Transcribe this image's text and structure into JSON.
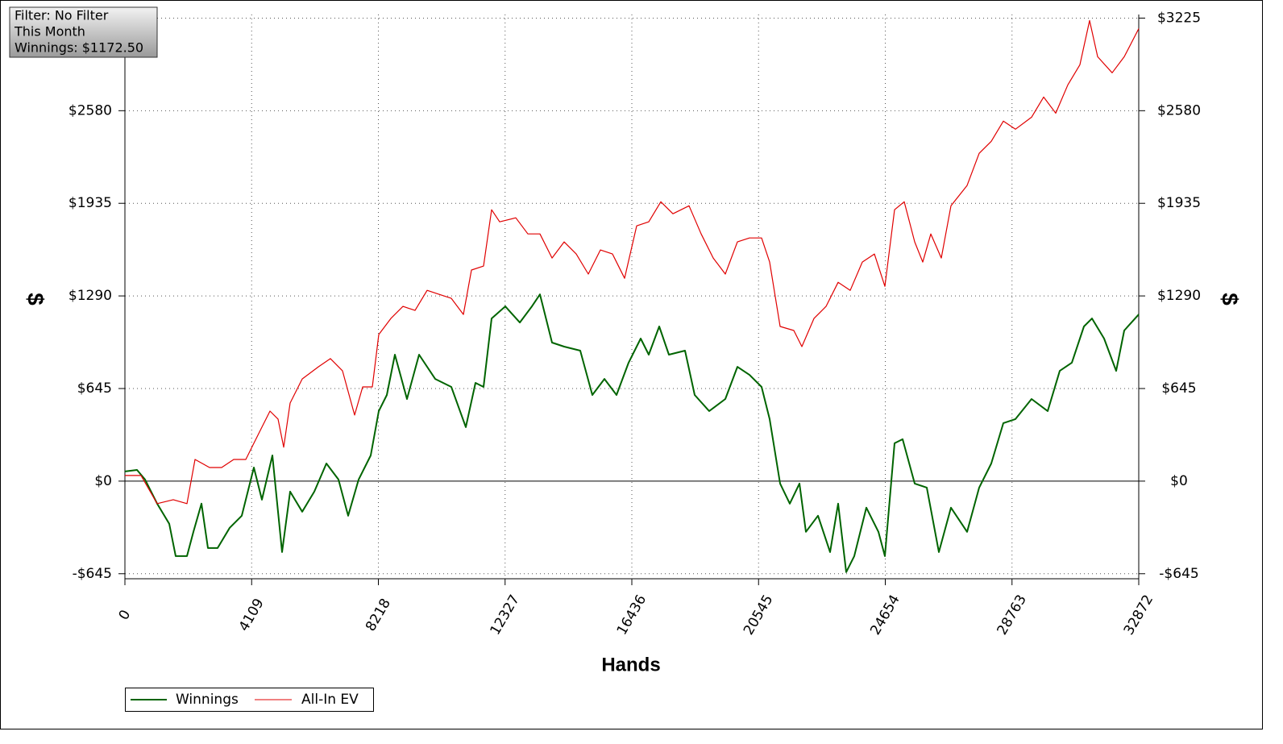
{
  "chart_data": {
    "type": "line",
    "annotations": [
      "Filter: No Filter",
      "This Month",
      "Winnings: $1172.50"
    ],
    "xlabel": "Hands",
    "ylabel": "$",
    "y2label": "$",
    "xlim": [
      0,
      32872
    ],
    "xticks": [
      0,
      4109,
      8218,
      12327,
      16436,
      20545,
      24654,
      28763,
      32872
    ],
    "ylim": [
      -680,
      3250
    ],
    "yticks": [
      {
        "value": -645,
        "label": "-$645"
      },
      {
        "value": 0,
        "label": "$0"
      },
      {
        "value": 645,
        "label": "$645"
      },
      {
        "value": 1290,
        "label": "$1290"
      },
      {
        "value": 1935,
        "label": "$1935"
      },
      {
        "value": 2580,
        "label": "$2580"
      },
      {
        "value": 3225,
        "label": "$3225"
      }
    ],
    "y2lim": [
      -680,
      3250
    ],
    "y2ticks": [
      {
        "value": -645,
        "label": "-$645"
      },
      {
        "value": 0,
        "label": "$0"
      },
      {
        "value": 645,
        "label": "$645"
      },
      {
        "value": 1290,
        "label": "$1290"
      },
      {
        "value": 1935,
        "label": "$1935"
      },
      {
        "value": 2580,
        "label": "$2580"
      },
      {
        "value": 3225,
        "label": "$3225"
      }
    ],
    "grid": true,
    "legend": "bottom-left",
    "series": [
      {
        "name": "Winnings",
        "color": "#006400",
        "x": [
          0,
          392,
          653,
          1045,
          1437,
          1646,
          2012,
          2221,
          2482,
          2691,
          3005,
          3397,
          3789,
          4181,
          4442,
          4782,
          5095,
          5357,
          5749,
          6141,
          6533,
          6924,
          7238,
          7578,
          7970,
          8231,
          8492,
          8754,
          9146,
          9537,
          10060,
          10582,
          11053,
          11367,
          11628,
          11889,
          12333,
          12804,
          13196,
          13457,
          13849,
          14241,
          14763,
          15155,
          15547,
          15939,
          16331,
          16723,
          16985,
          17324,
          17638,
          18160,
          18474,
          18944,
          19467,
          19859,
          20251,
          20643,
          20904,
          21244,
          21557,
          21871,
          22080,
          22472,
          22864,
          23125,
          23386,
          23648,
          24040,
          24432,
          24640,
          24954,
          25215,
          25607,
          25999,
          26391,
          26783,
          27306,
          27698,
          28090,
          28482,
          28874,
          29396,
          29919,
          30311,
          30703,
          31095,
          31356,
          31748,
          32140,
          32401,
          32872
        ],
        "values": [
          67,
          78,
          11,
          -157,
          -297,
          -522,
          -522,
          -353,
          -157,
          -466,
          -466,
          -325,
          -241,
          95,
          -129,
          179,
          -494,
          -73,
          -213,
          -73,
          123,
          11,
          -241,
          11,
          179,
          488,
          600,
          881,
          572,
          881,
          712,
          656,
          376,
          684,
          656,
          1133,
          1217,
          1105,
          1217,
          1301,
          965,
          937,
          909,
          600,
          712,
          600,
          825,
          993,
          881,
          1077,
          881,
          909,
          600,
          488,
          572,
          796,
          740,
          656,
          432,
          -17,
          -157,
          -17,
          -353,
          -241,
          -494,
          -157,
          -634,
          -522,
          -185,
          -353,
          -522,
          264,
          292,
          -17,
          -45,
          -494,
          -185,
          -353,
          -45,
          123,
          404,
          432,
          572,
          488,
          768,
          825,
          1077,
          1133,
          993,
          768,
          1049,
          1161
        ]
      },
      {
        "name": "All-In EV",
        "color": "#e00000",
        "x": [
          0,
          523,
          1045,
          1568,
          2012,
          2273,
          2744,
          3136,
          3528,
          3920,
          4181,
          4442,
          4704,
          4965,
          5148,
          5357,
          5749,
          6271,
          6663,
          7055,
          7447,
          7708,
          8022,
          8231,
          8623,
          9015,
          9407,
          9799,
          10191,
          10583,
          10975,
          11236,
          11628,
          11889,
          12150,
          12673,
          13065,
          13457,
          13849,
          14241,
          14633,
          15025,
          15417,
          15809,
          16201,
          16593,
          16985,
          17376,
          17768,
          18291,
          18683,
          19075,
          19467,
          19859,
          20251,
          20643,
          20904,
          21244,
          21688,
          21949,
          22341,
          22733,
          23125,
          23517,
          23909,
          24301,
          24640,
          24954,
          25268,
          25607,
          25869,
          26130,
          26470,
          26783,
          27306,
          27698,
          28090,
          28482,
          28874,
          29396,
          29788,
          30180,
          30572,
          30964,
          31278,
          31540,
          32010,
          32401,
          32872
        ],
        "values": [
          39,
          39,
          -157,
          -129,
          -157,
          151,
          95,
          95,
          151,
          151,
          264,
          376,
          488,
          432,
          236,
          544,
          712,
          796,
          853,
          768,
          460,
          656,
          656,
          1021,
          1133,
          1217,
          1189,
          1329,
          1301,
          1273,
          1161,
          1470,
          1498,
          1890,
          1806,
          1834,
          1722,
          1722,
          1554,
          1666,
          1582,
          1442,
          1610,
          1582,
          1413,
          1778,
          1806,
          1946,
          1862,
          1918,
          1722,
          1554,
          1442,
          1666,
          1694,
          1694,
          1526,
          1077,
          1049,
          937,
          1133,
          1217,
          1385,
          1329,
          1526,
          1582,
          1357,
          1890,
          1946,
          1666,
          1526,
          1722,
          1554,
          1918,
          2059,
          2283,
          2367,
          2507,
          2451,
          2535,
          2675,
          2563,
          2760,
          2900,
          3208,
          2956,
          2844,
          2956,
          3152
        ]
      }
    ]
  }
}
